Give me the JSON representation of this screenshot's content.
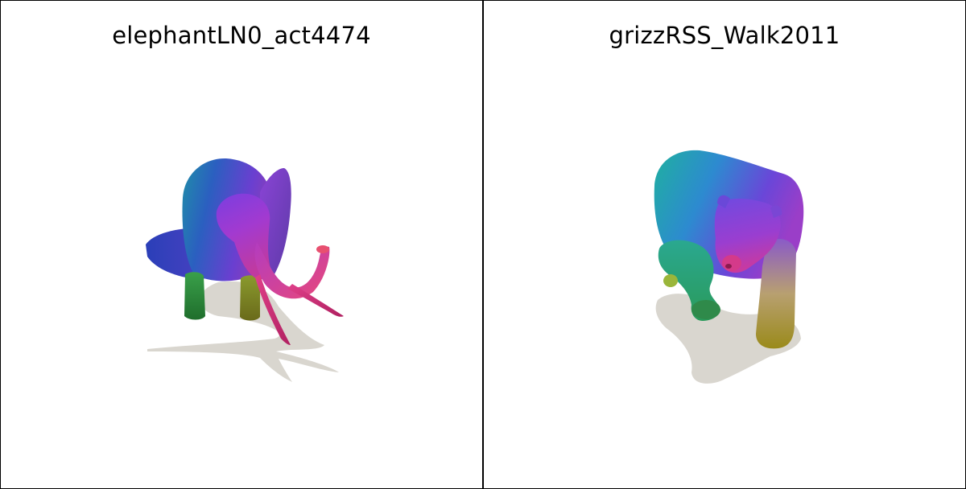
{
  "panels": [
    {
      "title": "elephantLN0_act4474",
      "subject": "elephant"
    },
    {
      "title": "grizzRSS_Walk2011",
      "subject": "grizzly-bear"
    }
  ],
  "colors": {
    "background": "#ffffff",
    "border": "#000000",
    "shadow": "#d9d6cf"
  }
}
